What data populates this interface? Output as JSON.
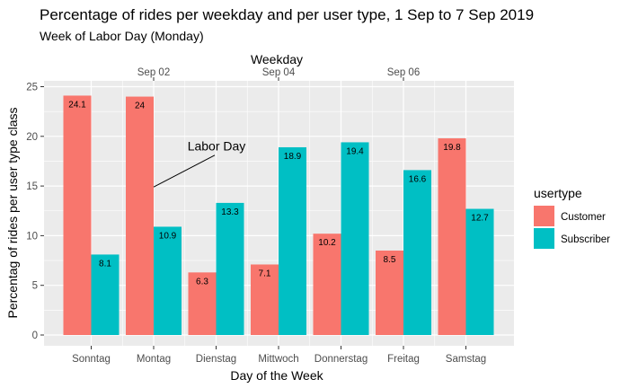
{
  "chart_data": {
    "type": "bar",
    "title": "Percentage of rides per weekday and per user type, 1 Sep to 7 Sep 2019",
    "subtitle": "Week of Labor Day (Monday)",
    "xlabel": "Day of the Week",
    "ylabel": "Percentag of rides per user type class",
    "secondary_xlabel": "Weekday",
    "categories": [
      "Sonntag",
      "Montag",
      "Dienstag",
      "Mittwoch",
      "Donnerstag",
      "Freitag",
      "Samstag"
    ],
    "secondary_ticks": [
      {
        "label": "Sep 02",
        "at": 1
      },
      {
        "label": "Sep 04",
        "at": 3
      },
      {
        "label": "Sep 06",
        "at": 5
      }
    ],
    "series": [
      {
        "name": "Customer",
        "color": "#F8766D",
        "values": [
          24.1,
          24,
          6.3,
          7.1,
          10.2,
          8.5,
          19.8
        ]
      },
      {
        "name": "Subscriber",
        "color": "#00BFC4",
        "values": [
          8.1,
          10.9,
          13.3,
          18.9,
          19.4,
          16.6,
          12.7
        ]
      }
    ],
    "ylim": [
      0,
      25
    ],
    "yticks": [
      0,
      5,
      10,
      15,
      20,
      25
    ],
    "legend": {
      "title": "usertype",
      "position": "right"
    },
    "grid": true,
    "annotation": {
      "text": "Labor Day",
      "category_index": 1,
      "value": 18.5
    }
  }
}
